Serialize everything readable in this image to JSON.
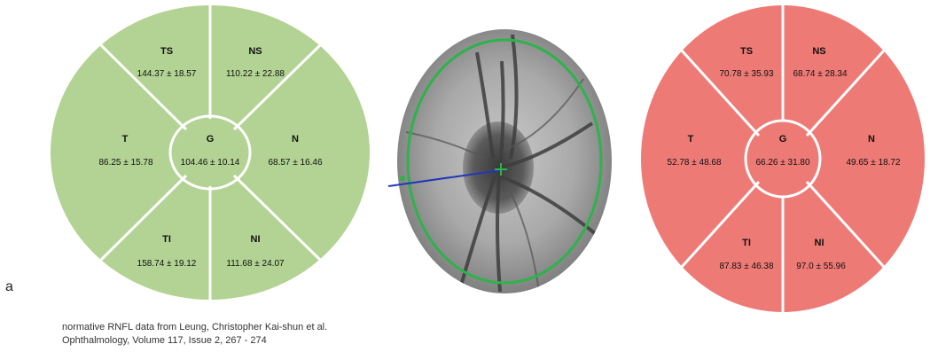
{
  "panel_letter": "a",
  "colors": {
    "normative_fill": "#b2d393",
    "patient_fill": "#ee7a76",
    "divider": "#ffffff",
    "scan_circle": "#2db34a",
    "scan_line": "#2038b8"
  },
  "normative_chart": {
    "sectors": {
      "TS": {
        "label": "TS",
        "value": "144.37 ± 18.57"
      },
      "NS": {
        "label": "NS",
        "value": "110.22 ± 22.88"
      },
      "T": {
        "label": "T",
        "value": "86.25 ± 15.78"
      },
      "G": {
        "label": "G",
        "value": "104.46 ± 10.14"
      },
      "N": {
        "label": "N",
        "value": "68.57 ± 16.46"
      },
      "TI": {
        "label": "TI",
        "value": "158.74 ± 19.12"
      },
      "NI": {
        "label": "NI",
        "value": "111.68 ± 24.07"
      }
    }
  },
  "patient_chart": {
    "sectors": {
      "TS": {
        "label": "TS",
        "value": "70.78 ±  35.93"
      },
      "NS": {
        "label": "NS",
        "value": "68.74 ± 28.34"
      },
      "T": {
        "label": "T",
        "value": "52.78 ± 48.68"
      },
      "G": {
        "label": "G",
        "value": "66.26 ± 31.80"
      },
      "N": {
        "label": "N",
        "value": "49.65 ± 18.72"
      },
      "TI": {
        "label": "TI",
        "value": "87.83 ± 46.38"
      },
      "NI": {
        "label": "NI",
        "value": "97.0 ± 55.96"
      }
    }
  },
  "citation": {
    "line1": "normative RNFL data from Leung, Christopher Kai-shun et al.",
    "line2": "Ophthalmology, Volume 117, Issue 2, 267 - 274"
  }
}
